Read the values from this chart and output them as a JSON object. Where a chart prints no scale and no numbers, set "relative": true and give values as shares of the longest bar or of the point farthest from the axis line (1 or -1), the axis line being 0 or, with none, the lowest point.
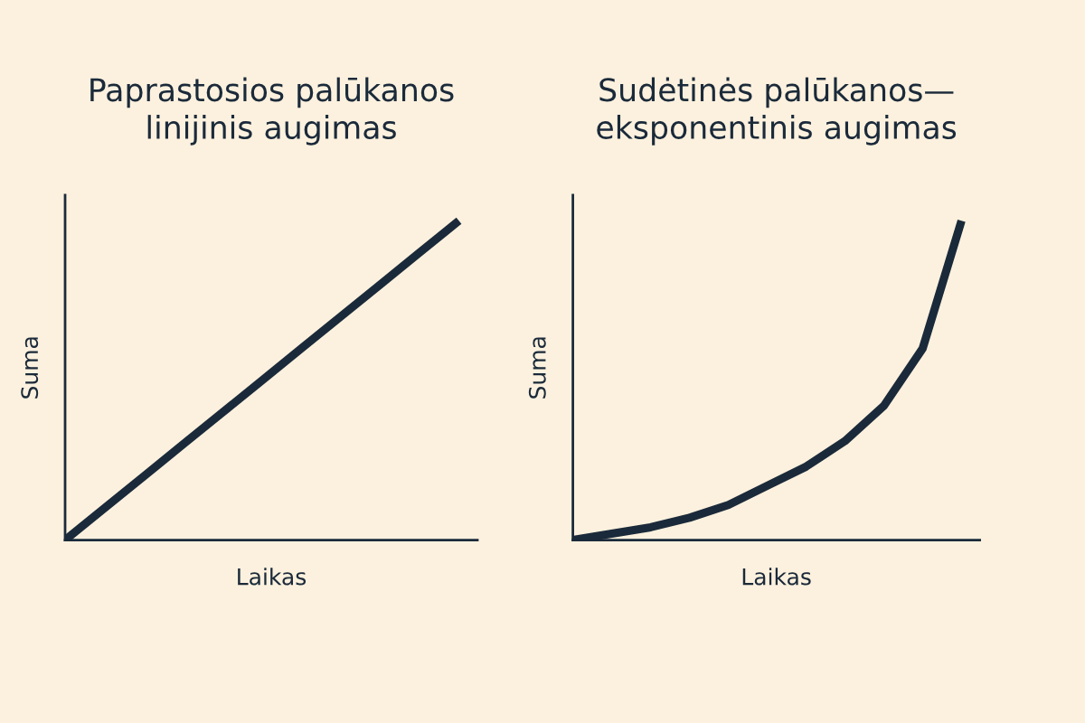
{
  "chart_data": [
    {
      "type": "line",
      "title": "Paprastosios palūkanos\nlinijinis augimas",
      "xlabel": "Laikas",
      "ylabel": "Suma",
      "relative": true,
      "categories": [
        null,
        null,
        null,
        null,
        null,
        null,
        null,
        null,
        null,
        null,
        null
      ],
      "series": [
        {
          "color": "#1b2a3a",
          "values": [
            0,
            0.1,
            0.2,
            0.3,
            0.4,
            0.5,
            0.6,
            0.7,
            0.8,
            0.9,
            1
          ]
        }
      ]
    },
    {
      "type": "line",
      "title": "Sudėtinės palūkanos—\neksponentinis augimas",
      "xlabel": "Laikas",
      "ylabel": "Suma",
      "relative": true,
      "categories": [
        null,
        null,
        null,
        null,
        null,
        null,
        null,
        null,
        null,
        null,
        null
      ],
      "series": [
        {
          "color": "#1b2a3a",
          "values": [
            0,
            0.02,
            0.04,
            0.07,
            0.11,
            0.17,
            0.23,
            0.31,
            0.42,
            0.6,
            1
          ]
        }
      ]
    }
  ]
}
